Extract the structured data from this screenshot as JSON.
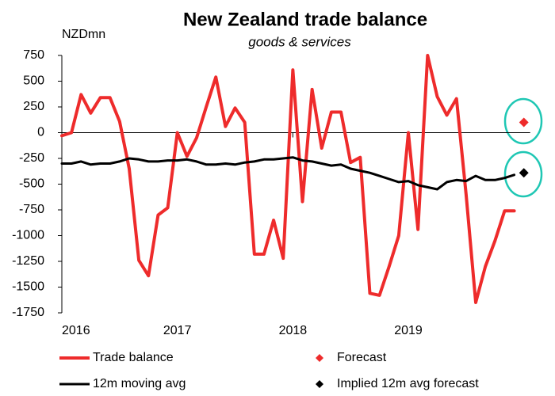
{
  "chart_data": {
    "type": "line",
    "title": "New Zealand trade balance",
    "subtitle": "goods & services",
    "ylabel": "NZDmn",
    "categories": [
      "2016",
      null,
      null,
      null,
      null,
      null,
      null,
      null,
      null,
      null,
      null,
      null,
      "2017",
      null,
      null,
      null,
      null,
      null,
      null,
      null,
      null,
      null,
      null,
      null,
      "2018",
      null,
      null,
      null,
      null,
      null,
      null,
      null,
      null,
      null,
      null,
      null,
      "2019",
      null,
      null,
      null,
      null,
      null,
      null,
      null,
      null,
      null,
      null,
      null,
      null
    ],
    "ylim": [
      -1750,
      750
    ],
    "yticks": [
      750,
      500,
      250,
      0,
      -250,
      -500,
      -750,
      -1000,
      -1250,
      -1500,
      -1750
    ],
    "grid": false,
    "series": [
      {
        "name": "Trade balance",
        "color": "#ee2b2b",
        "values": [
          -30,
          0,
          370,
          190,
          340,
          340,
          110,
          -350,
          -1240,
          -1390,
          -800,
          -730,
          0,
          -230,
          -50,
          250,
          540,
          60,
          240,
          100,
          -1180,
          -1180,
          -850,
          -1220,
          610,
          -670,
          420,
          -150,
          200,
          200,
          -290,
          -240,
          -1560,
          -1580,
          -1300,
          -1000,
          0,
          -940,
          750,
          350,
          170,
          330,
          -600,
          -1650,
          -1300,
          -1050,
          -760,
          -760,
          null
        ]
      },
      {
        "name": "Forecast",
        "color": "#ee2b2b",
        "marker": "diamond",
        "values": [
          null,
          null,
          null,
          null,
          null,
          null,
          null,
          null,
          null,
          null,
          null,
          null,
          null,
          null,
          null,
          null,
          null,
          null,
          null,
          null,
          null,
          null,
          null,
          null,
          null,
          null,
          null,
          null,
          null,
          null,
          null,
          null,
          null,
          null,
          null,
          null,
          null,
          null,
          null,
          null,
          null,
          null,
          null,
          null,
          null,
          null,
          null,
          null,
          100
        ]
      },
      {
        "name": "12m moving avg",
        "color": "#000000",
        "values": [
          -300,
          -300,
          -280,
          -310,
          -300,
          -300,
          -280,
          -250,
          -260,
          -280,
          -280,
          -270,
          -270,
          -260,
          -280,
          -310,
          -310,
          -300,
          -310,
          -290,
          -280,
          -260,
          -260,
          -250,
          -240,
          -270,
          -280,
          -300,
          -320,
          -310,
          -350,
          -370,
          -390,
          -420,
          -450,
          -480,
          -470,
          -510,
          -530,
          -550,
          -480,
          -460,
          -470,
          -420,
          -460,
          -460,
          -440,
          -410,
          null
        ]
      },
      {
        "name": "Implied 12m avg forecast",
        "color": "#000000",
        "marker": "diamond",
        "values": [
          null,
          null,
          null,
          null,
          null,
          null,
          null,
          null,
          null,
          null,
          null,
          null,
          null,
          null,
          null,
          null,
          null,
          null,
          null,
          null,
          null,
          null,
          null,
          null,
          null,
          null,
          null,
          null,
          null,
          null,
          null,
          null,
          null,
          null,
          null,
          null,
          null,
          null,
          null,
          null,
          null,
          null,
          null,
          null,
          null,
          null,
          null,
          null,
          -390
        ]
      }
    ]
  }
}
